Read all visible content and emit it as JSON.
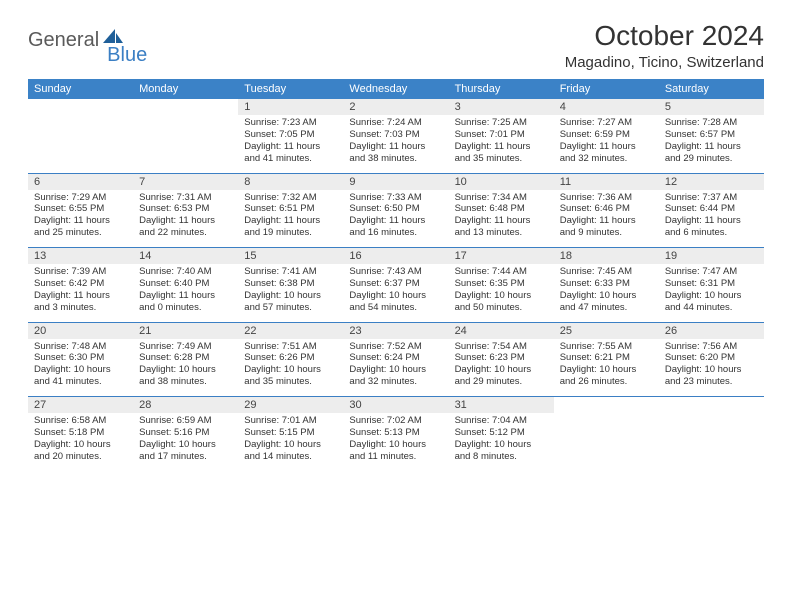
{
  "logo": {
    "text1": "General",
    "text2": "Blue"
  },
  "title": "October 2024",
  "location": "Magadino, Ticino, Switzerland",
  "colors": {
    "header_bg": "#3b82c7",
    "header_text": "#ffffff",
    "daynum_bg": "#ededed",
    "rule": "#3b7fc4",
    "logo_blue": "#3b7fc4",
    "logo_gray": "#5a5a5a"
  },
  "day_names": [
    "Sunday",
    "Monday",
    "Tuesday",
    "Wednesday",
    "Thursday",
    "Friday",
    "Saturday"
  ],
  "weeks": [
    [
      {
        "n": "",
        "t": ""
      },
      {
        "n": "",
        "t": ""
      },
      {
        "n": "1",
        "t": "Sunrise: 7:23 AM\nSunset: 7:05 PM\nDaylight: 11 hours and 41 minutes."
      },
      {
        "n": "2",
        "t": "Sunrise: 7:24 AM\nSunset: 7:03 PM\nDaylight: 11 hours and 38 minutes."
      },
      {
        "n": "3",
        "t": "Sunrise: 7:25 AM\nSunset: 7:01 PM\nDaylight: 11 hours and 35 minutes."
      },
      {
        "n": "4",
        "t": "Sunrise: 7:27 AM\nSunset: 6:59 PM\nDaylight: 11 hours and 32 minutes."
      },
      {
        "n": "5",
        "t": "Sunrise: 7:28 AM\nSunset: 6:57 PM\nDaylight: 11 hours and 29 minutes."
      }
    ],
    [
      {
        "n": "6",
        "t": "Sunrise: 7:29 AM\nSunset: 6:55 PM\nDaylight: 11 hours and 25 minutes."
      },
      {
        "n": "7",
        "t": "Sunrise: 7:31 AM\nSunset: 6:53 PM\nDaylight: 11 hours and 22 minutes."
      },
      {
        "n": "8",
        "t": "Sunrise: 7:32 AM\nSunset: 6:51 PM\nDaylight: 11 hours and 19 minutes."
      },
      {
        "n": "9",
        "t": "Sunrise: 7:33 AM\nSunset: 6:50 PM\nDaylight: 11 hours and 16 minutes."
      },
      {
        "n": "10",
        "t": "Sunrise: 7:34 AM\nSunset: 6:48 PM\nDaylight: 11 hours and 13 minutes."
      },
      {
        "n": "11",
        "t": "Sunrise: 7:36 AM\nSunset: 6:46 PM\nDaylight: 11 hours and 9 minutes."
      },
      {
        "n": "12",
        "t": "Sunrise: 7:37 AM\nSunset: 6:44 PM\nDaylight: 11 hours and 6 minutes."
      }
    ],
    [
      {
        "n": "13",
        "t": "Sunrise: 7:39 AM\nSunset: 6:42 PM\nDaylight: 11 hours and 3 minutes."
      },
      {
        "n": "14",
        "t": "Sunrise: 7:40 AM\nSunset: 6:40 PM\nDaylight: 11 hours and 0 minutes."
      },
      {
        "n": "15",
        "t": "Sunrise: 7:41 AM\nSunset: 6:38 PM\nDaylight: 10 hours and 57 minutes."
      },
      {
        "n": "16",
        "t": "Sunrise: 7:43 AM\nSunset: 6:37 PM\nDaylight: 10 hours and 54 minutes."
      },
      {
        "n": "17",
        "t": "Sunrise: 7:44 AM\nSunset: 6:35 PM\nDaylight: 10 hours and 50 minutes."
      },
      {
        "n": "18",
        "t": "Sunrise: 7:45 AM\nSunset: 6:33 PM\nDaylight: 10 hours and 47 minutes."
      },
      {
        "n": "19",
        "t": "Sunrise: 7:47 AM\nSunset: 6:31 PM\nDaylight: 10 hours and 44 minutes."
      }
    ],
    [
      {
        "n": "20",
        "t": "Sunrise: 7:48 AM\nSunset: 6:30 PM\nDaylight: 10 hours and 41 minutes."
      },
      {
        "n": "21",
        "t": "Sunrise: 7:49 AM\nSunset: 6:28 PM\nDaylight: 10 hours and 38 minutes."
      },
      {
        "n": "22",
        "t": "Sunrise: 7:51 AM\nSunset: 6:26 PM\nDaylight: 10 hours and 35 minutes."
      },
      {
        "n": "23",
        "t": "Sunrise: 7:52 AM\nSunset: 6:24 PM\nDaylight: 10 hours and 32 minutes."
      },
      {
        "n": "24",
        "t": "Sunrise: 7:54 AM\nSunset: 6:23 PM\nDaylight: 10 hours and 29 minutes."
      },
      {
        "n": "25",
        "t": "Sunrise: 7:55 AM\nSunset: 6:21 PM\nDaylight: 10 hours and 26 minutes."
      },
      {
        "n": "26",
        "t": "Sunrise: 7:56 AM\nSunset: 6:20 PM\nDaylight: 10 hours and 23 minutes."
      }
    ],
    [
      {
        "n": "27",
        "t": "Sunrise: 6:58 AM\nSunset: 5:18 PM\nDaylight: 10 hours and 20 minutes."
      },
      {
        "n": "28",
        "t": "Sunrise: 6:59 AM\nSunset: 5:16 PM\nDaylight: 10 hours and 17 minutes."
      },
      {
        "n": "29",
        "t": "Sunrise: 7:01 AM\nSunset: 5:15 PM\nDaylight: 10 hours and 14 minutes."
      },
      {
        "n": "30",
        "t": "Sunrise: 7:02 AM\nSunset: 5:13 PM\nDaylight: 10 hours and 11 minutes."
      },
      {
        "n": "31",
        "t": "Sunrise: 7:04 AM\nSunset: 5:12 PM\nDaylight: 10 hours and 8 minutes."
      },
      {
        "n": "",
        "t": ""
      },
      {
        "n": "",
        "t": ""
      }
    ]
  ]
}
